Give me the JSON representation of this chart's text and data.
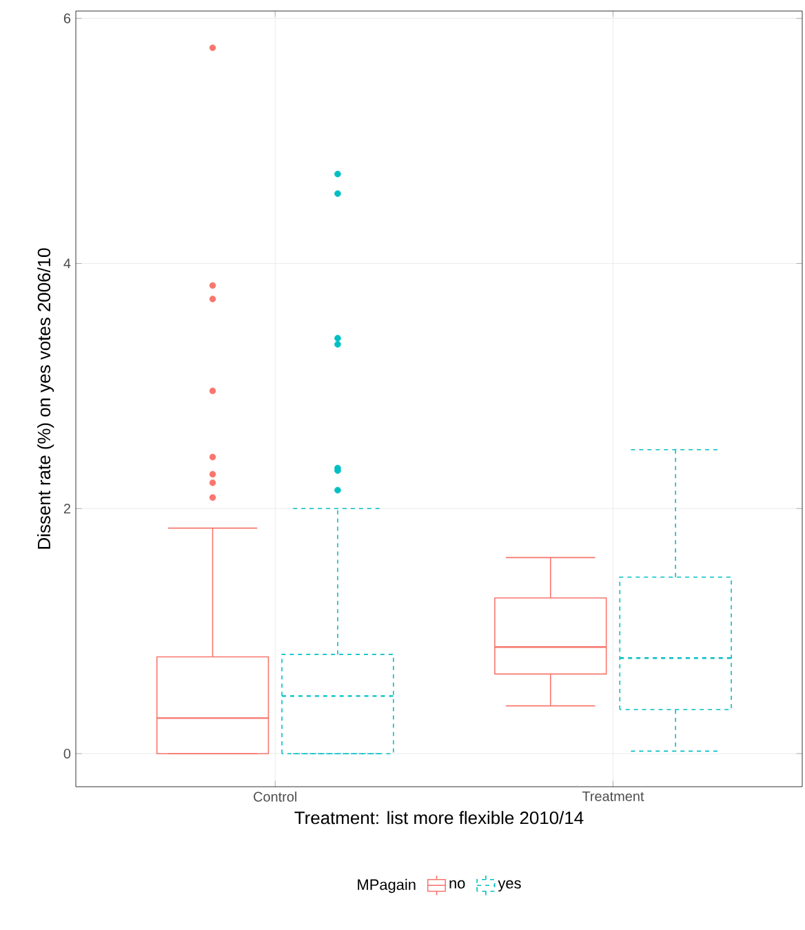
{
  "chart_data": {
    "type": "box",
    "xlabel": "Treatment: list more flexible 2010/14",
    "ylabel": "Dissent rate (%) on yes votes 2006/10",
    "legend_title": "MPagain",
    "categories": [
      "Control",
      "Treatment"
    ],
    "ylim": [
      -0.27,
      6.06
    ],
    "yticks": [
      0,
      2,
      4,
      6
    ],
    "grid": true,
    "legend": "bottom",
    "series": [
      {
        "name": "no",
        "color": "#f8766d",
        "line_style": "solid",
        "boxes": [
          {
            "low": 0,
            "q1": 0,
            "median": 0.29,
            "q3": 0.79,
            "high": 1.84,
            "outliers": [
              5.76,
              3.82,
              3.71,
              2.96,
              2.42,
              2.28,
              2.21,
              2.09
            ]
          },
          {
            "low": 0.39,
            "q1": 0.65,
            "median": 0.87,
            "q3": 1.27,
            "high": 1.6
          }
        ]
      },
      {
        "name": "yes",
        "color": "#00bfc4",
        "line_style": "dashed",
        "boxes": [
          {
            "low": 0,
            "q1": 0,
            "median": 0.47,
            "q3": 0.81,
            "high": 2.0,
            "outliers": [
              4.73,
              4.57,
              3.39,
              3.34,
              2.33,
              2.31,
              2.15
            ]
          },
          {
            "low": 0.02,
            "q1": 0.36,
            "median": 0.78,
            "q3": 1.44,
            "high": 2.48
          }
        ]
      }
    ]
  }
}
